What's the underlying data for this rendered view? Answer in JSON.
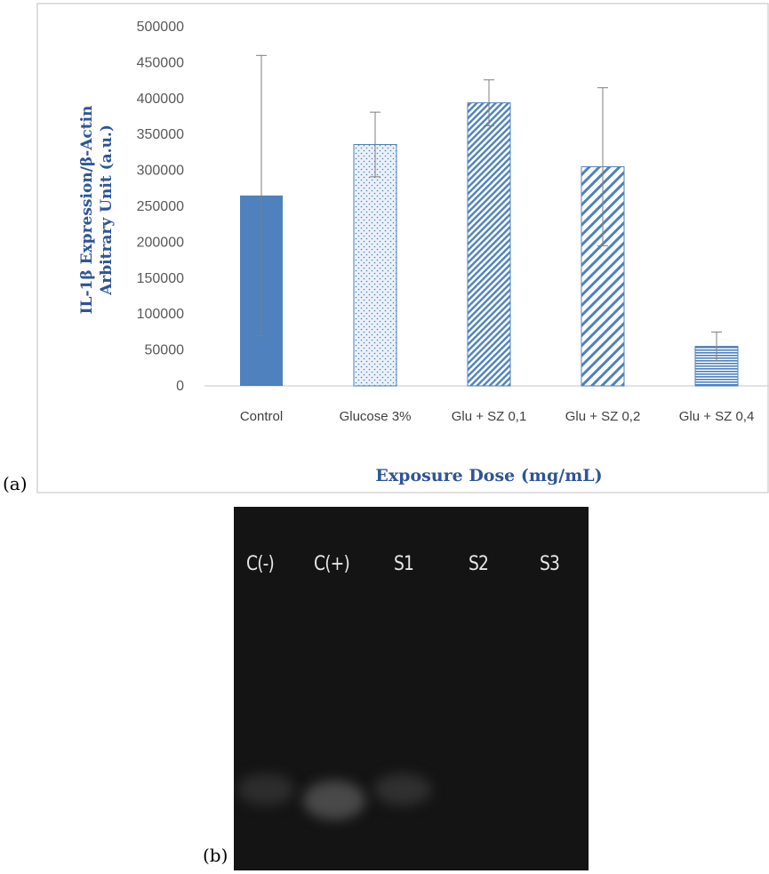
{
  "panels": {
    "a_label": "(a)",
    "b_label": "(b)"
  },
  "colors": {
    "bar_primary": "#4e81bd",
    "axis_text": "#595959",
    "title_text": "#2e5596",
    "gel_bg": "#141414"
  },
  "chart_data": {
    "type": "bar",
    "categories": [
      "Control",
      "Glucose 3%",
      "Glu + SZ 0,1",
      "Glu + SZ 0,2",
      "Glu + SZ 0,4"
    ],
    "values": [
      265000,
      336000,
      394000,
      305000,
      55000
    ],
    "error_plus": [
      195000,
      45000,
      32000,
      110000,
      20000
    ],
    "error_minus": [
      195000,
      45000,
      32000,
      110000,
      20000
    ],
    "patterns": [
      "solid",
      "dots",
      "diagonal-dense",
      "diagonal-wide",
      "horizontal"
    ],
    "ylim": [
      0,
      500000
    ],
    "yticks": [
      "0",
      "50000",
      "100000",
      "150000",
      "200000",
      "250000",
      "300000",
      "350000",
      "400000",
      "450000",
      "500000"
    ],
    "xlabel": "Exposure Dose (mg/mL)",
    "ylabel_line1": "IL-1β Expression/β-Actin",
    "ylabel_line2": "Arbitrary Unit (a.u.)",
    "grid": false,
    "legend": "none"
  },
  "gel": {
    "lanes": [
      "C(-)",
      "C(+)",
      "S1",
      "S2",
      "S3"
    ],
    "band_intensity": [
      0.35,
      0.75,
      0.4,
      0,
      0
    ]
  }
}
